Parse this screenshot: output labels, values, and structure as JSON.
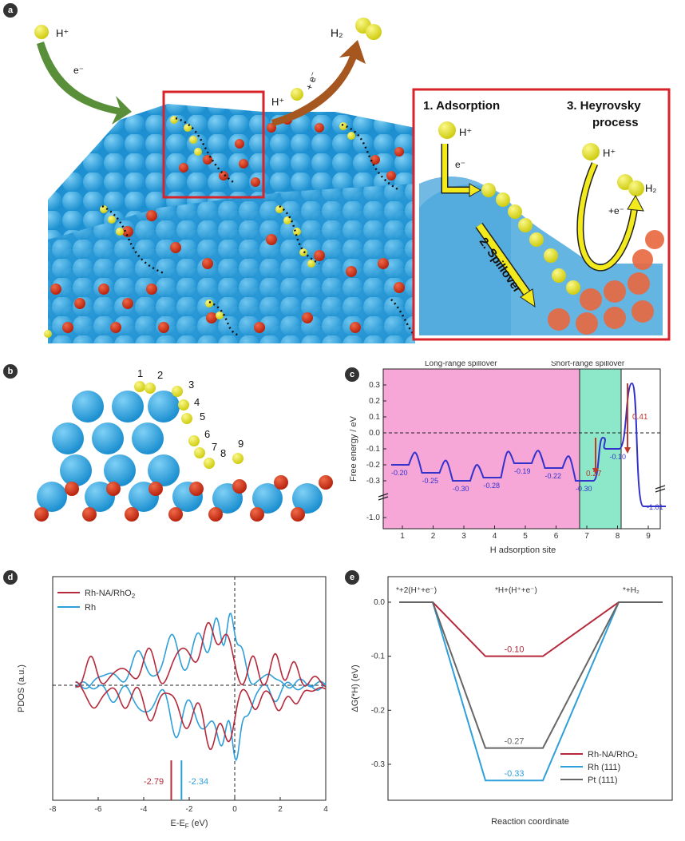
{
  "panel_labels": {
    "a": "a",
    "b": "b",
    "c": "c",
    "d": "d",
    "e": "e"
  },
  "panel_a": {
    "h_plus_left": "H⁺",
    "e_minus_left": "e⁻",
    "h_plus_mid": "H⁺",
    "e_plus_mid": "+ e⁻",
    "h2_top": "H₂",
    "inset": {
      "step1": "1. Adsorption",
      "step2": "2. Spillover",
      "step3_line1": "3. Heyrovsky",
      "step3_line2": "process",
      "h_plus_a": "H⁺",
      "e_minus_a": "e⁻",
      "h_plus_b": "H⁺",
      "e_minus_b": "+e⁻",
      "h2": "H₂"
    },
    "colors": {
      "rh": "#2aa6e3",
      "o": "#d93a1c",
      "h": "#e8e62a",
      "inset_border": "#d8232a"
    }
  },
  "panel_b": {
    "site_labels": [
      "1",
      "2",
      "3",
      "4",
      "5",
      "6",
      "7",
      "8",
      "9"
    ]
  },
  "chart_c": {
    "type": "line",
    "xlabel": "H adsorption site",
    "ylabel": "Free energy / eV",
    "region_long": "Long-range spillover",
    "region_short": "Short-range spillover",
    "x_ticks": [
      "1",
      "2",
      "3",
      "4",
      "5",
      "6",
      "7",
      "8",
      "9"
    ],
    "y_ticks": [
      "0.3",
      "0.2",
      "0.1",
      "0.0",
      "-0.1",
      "-0.2",
      "-0.3",
      "-1.0"
    ],
    "site_values": [
      -0.2,
      -0.25,
      -0.3,
      -0.28,
      -0.19,
      -0.22,
      -0.3,
      -0.1,
      -1.01
    ],
    "site_labels": [
      "-0.20",
      "-0.25",
      "-0.30",
      "-0.28",
      "-0.19",
      "-0.22",
      "-0.30",
      "-0.10",
      "-1.01"
    ],
    "barrier_labels": [
      "0.27",
      "0.41"
    ],
    "barriers": [
      {
        "x": 7.5,
        "value": -0.03
      },
      {
        "x": 8.5,
        "value": 0.31
      }
    ],
    "colors": {
      "line": "#3333cc",
      "long": "#f7a6d8",
      "short": "#8ce8c8",
      "arrow": "#c0392b"
    }
  },
  "chart_d": {
    "type": "line",
    "xlabel": "E-E",
    "xlabel_sub": "F",
    "xlabel_unit": " (eV)",
    "ylabel": "PDOS (a.u.)",
    "x_ticks": [
      "-8",
      "-6",
      "-4",
      "-2",
      "0",
      "2",
      "4"
    ],
    "xlim": [
      -8,
      4
    ],
    "series": [
      {
        "name": "Rh-NA/RhO",
        "name_sub": "2",
        "color": "#b5293b",
        "d_band": "-2.79"
      },
      {
        "name": "Rh",
        "name_sub": "",
        "color": "#2e9fd8",
        "d_band": "-2.34"
      }
    ],
    "d_band_values": [
      -2.79,
      -2.34
    ]
  },
  "chart_e": {
    "type": "line",
    "xlabel": "Reaction coordinate",
    "ylabel": "ΔG(*H) (eV)",
    "y_ticks": [
      "0.0",
      "-0.1",
      "-0.2",
      "-0.3"
    ],
    "ylim": [
      -0.36,
      0.03
    ],
    "states": [
      "*+2(H⁺+e⁻)",
      "*H+(H⁺+e⁻)",
      "*+H₂"
    ],
    "series": [
      {
        "name": "Rh-NA/RhO₂",
        "color": "#b5293b",
        "value": -0.1,
        "label": "-0.10"
      },
      {
        "name": "Rh (111)",
        "color": "#2e9fd8",
        "value": -0.33,
        "label": "-0.33"
      },
      {
        "name": "Pt  (111)",
        "color": "#666666",
        "value": -0.27,
        "label": "-0.27"
      }
    ]
  }
}
